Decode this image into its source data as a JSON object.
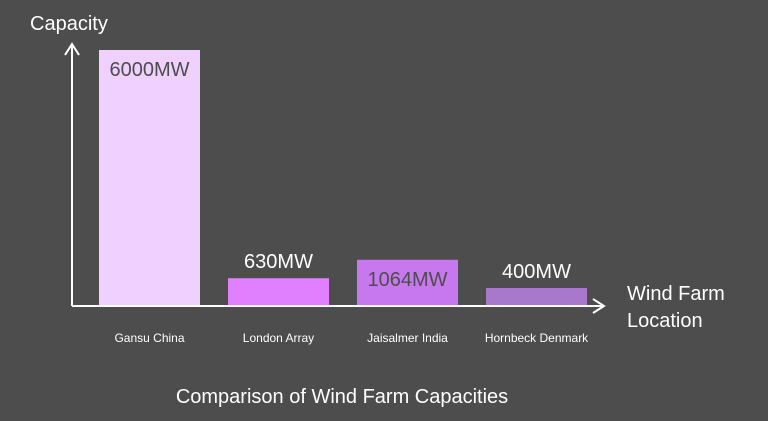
{
  "chart_data": {
    "type": "bar",
    "title": "Comparison of Wind Farm Capacities",
    "ylabel": "Capacity",
    "xlabel": [
      "Wind Farm",
      "Location"
    ],
    "categories": [
      "Gansu China",
      "London Array",
      "Jaisalmer India",
      "Hornbeck Denmark"
    ],
    "values": [
      6000,
      630,
      1064,
      400
    ],
    "value_labels": [
      "6000MW",
      "630MW",
      "1064MW",
      "400MW"
    ],
    "colors": [
      "#f0d0ff",
      "#e080ff",
      "#c878ee",
      "#a878cc"
    ],
    "label_colors": [
      "#4d4d4d",
      "#ffffff",
      "#4d4d4d",
      "#ffffff"
    ],
    "label_inside": [
      true,
      false,
      true,
      false
    ],
    "ylim": [
      0,
      6000
    ],
    "grid": false,
    "legend": "none"
  }
}
